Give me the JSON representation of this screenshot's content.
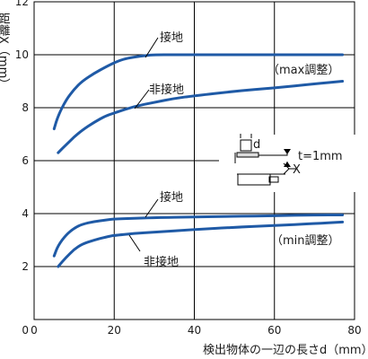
{
  "chart_data": {
    "type": "line",
    "xlabel": "検出物体の一辺の長さd（mm）",
    "ylabel": "距離X（mm）",
    "xlim": [
      0,
      80
    ],
    "ylim": [
      0,
      12
    ],
    "xticks": [
      0,
      20,
      40,
      60,
      80
    ],
    "yticks": [
      2,
      4,
      6,
      8,
      10,
      12
    ],
    "grid": true,
    "series": [
      {
        "name": "接地",
        "group": "max調整",
        "color": "#1f5aa6",
        "x": [
          5,
          6,
          8,
          10,
          12,
          15,
          18,
          20,
          22,
          25,
          28,
          30,
          35,
          40,
          50,
          60,
          70,
          77
        ],
        "y": [
          7.2,
          7.7,
          8.3,
          8.7,
          9.0,
          9.3,
          9.55,
          9.7,
          9.82,
          9.92,
          9.97,
          10.0,
          10.0,
          10.0,
          10.0,
          10.0,
          10.0,
          10.0
        ]
      },
      {
        "name": "非接地",
        "group": "max調整",
        "color": "#1f5aa6",
        "x": [
          6,
          8,
          10,
          12,
          15,
          18,
          20,
          25,
          30,
          35,
          40,
          50,
          60,
          70,
          77
        ],
        "y": [
          6.3,
          6.6,
          6.9,
          7.15,
          7.45,
          7.7,
          7.8,
          8.05,
          8.2,
          8.35,
          8.45,
          8.62,
          8.75,
          8.9,
          9.0
        ]
      },
      {
        "name": "接地",
        "group": "min調整",
        "color": "#1f5aa6",
        "x": [
          5,
          6,
          8,
          10,
          12,
          15,
          18,
          20,
          25,
          30,
          40,
          50,
          60,
          70,
          77
        ],
        "y": [
          2.4,
          2.8,
          3.2,
          3.45,
          3.6,
          3.7,
          3.76,
          3.8,
          3.82,
          3.85,
          3.87,
          3.9,
          3.92,
          3.95,
          3.95
        ]
      },
      {
        "name": "非接地",
        "group": "min調整",
        "color": "#1f5aa6",
        "x": [
          6,
          8,
          10,
          12,
          15,
          18,
          20,
          25,
          30,
          40,
          50,
          60,
          70,
          77
        ],
        "y": [
          2.0,
          2.35,
          2.65,
          2.85,
          3.0,
          3.12,
          3.18,
          3.25,
          3.3,
          3.4,
          3.48,
          3.55,
          3.62,
          3.68
        ]
      }
    ],
    "annotations": {
      "max_group": "（max調整）",
      "min_group": "（min調整）",
      "grounded": "接地",
      "ungrounded": "非接地",
      "inset_d": "d",
      "inset_t": "t=1mm",
      "inset_x": "X"
    }
  }
}
